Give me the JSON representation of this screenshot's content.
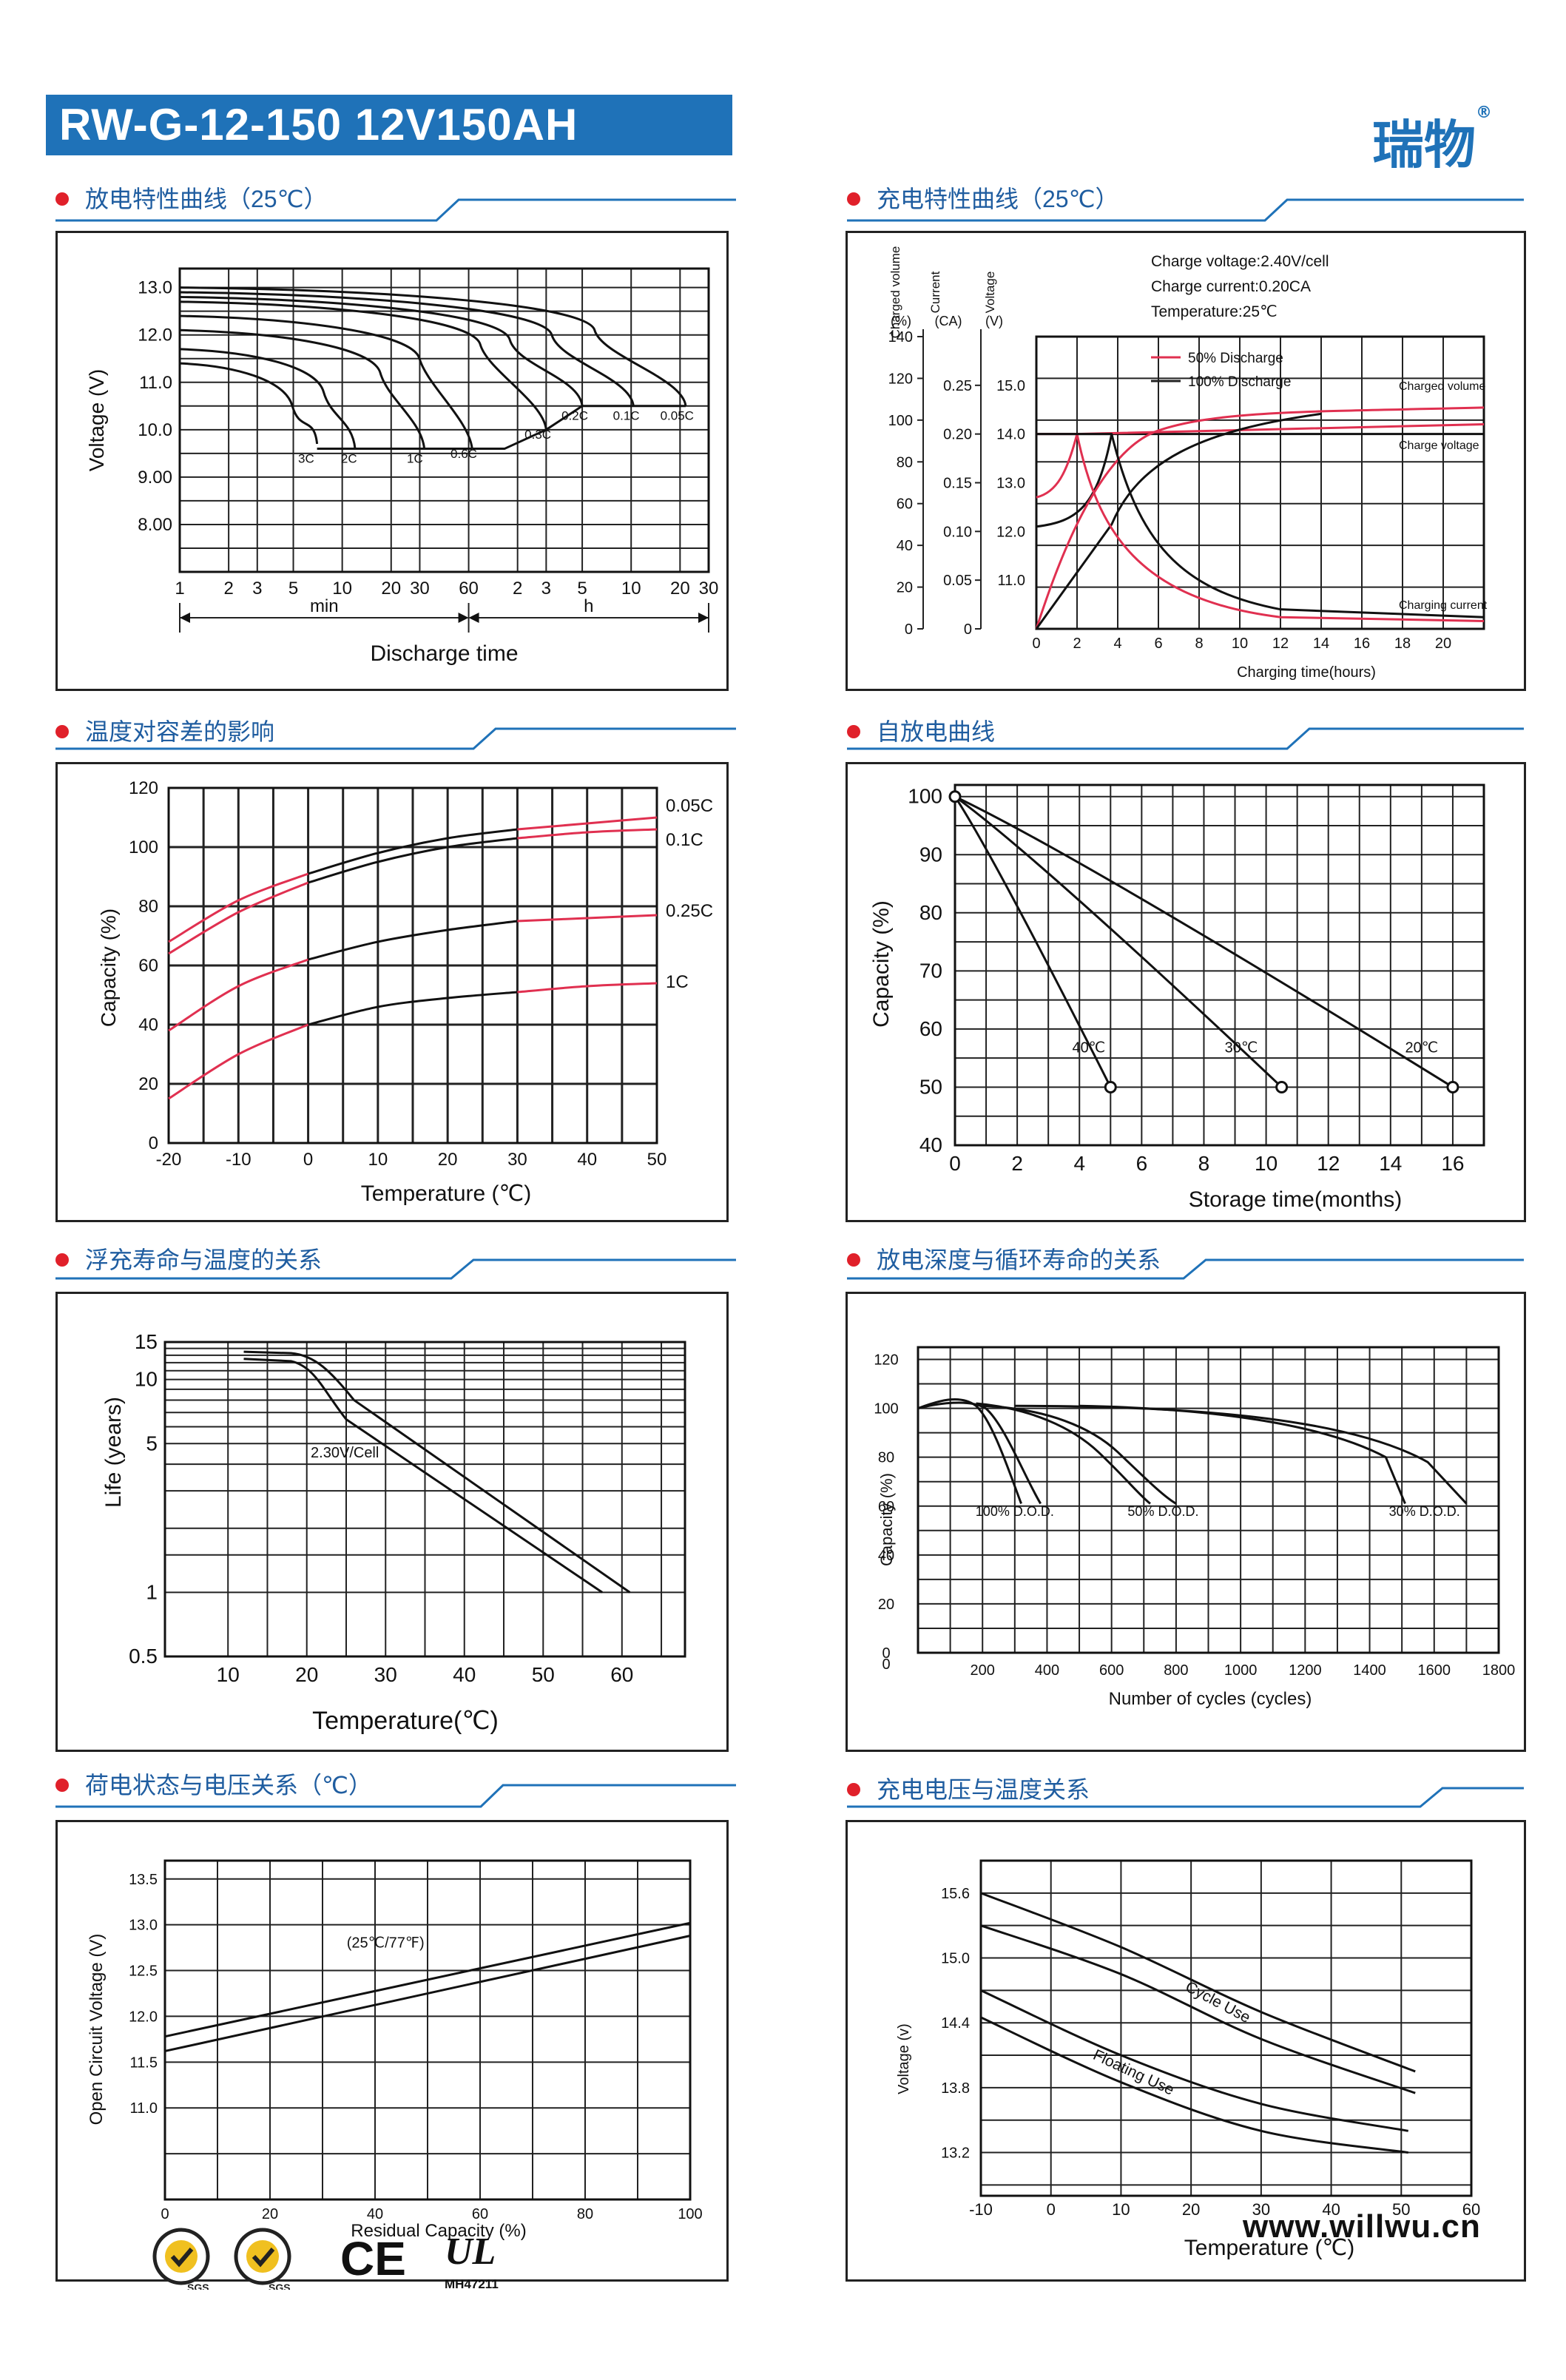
{
  "header": {
    "title": "RW-G-12-150  12V150AH",
    "brand": "瑞物",
    "brand_mark": "®"
  },
  "footer": {
    "url": "www.willwu.cn",
    "ul_code": "MH47211",
    "cert_labels": [
      "SGS",
      "SGS",
      "CE",
      "UL"
    ]
  },
  "colors": {
    "accent": "#1f72b8",
    "red": "#e0202a",
    "pink": "#e03050",
    "grid": "#222222"
  },
  "panels": {
    "p1_title": "放电特性曲线（25℃）",
    "p2_title": "充电特性曲线（25℃）",
    "p3_title": "温度对容差的影响",
    "p4_title": "自放电曲线",
    "p5_title": "浮充寿命与温度的关系",
    "p6_title": "放电深度与循环寿命的关系",
    "p7_title": "荷电状态与电压关系（℃）",
    "p8_title": "充电电压与温度关系"
  },
  "chart_data": [
    {
      "id": "discharge",
      "type": "line",
      "title": "放电特性曲线（25℃）",
      "ylabel": "Voltage (V)",
      "xlabel": "Discharge time",
      "yticks": [
        "13.0",
        "12.0",
        "11.0",
        "10.0",
        "9.00",
        "8.00"
      ],
      "ylim": [
        7.0,
        13.4
      ],
      "xticks": [
        "1",
        "2",
        "3",
        "5",
        "10",
        "20",
        "30",
        "60",
        "2",
        "3",
        "5",
        "10",
        "20",
        "30"
      ],
      "xunits": {
        "min": "min",
        "h": "h"
      },
      "series": [
        {
          "name": "3C",
          "end_minutes": 7
        },
        {
          "name": "2C",
          "end_minutes": 12
        },
        {
          "name": "1C",
          "end_minutes": 32
        },
        {
          "name": "0.6C",
          "end_minutes": 63
        },
        {
          "name": "0.3C",
          "end_minutes": 180
        },
        {
          "name": "0.2C",
          "end_minutes": 300
        },
        {
          "name": "0.1C",
          "end_minutes": 620
        },
        {
          "name": "0.05C",
          "end_minutes": 1300
        }
      ]
    },
    {
      "id": "charge",
      "type": "line",
      "title": "充电特性曲线（25℃）",
      "axis_headers": [
        "Charged volume",
        "Current",
        "Voltage"
      ],
      "axis_units": [
        "(%)",
        "(CA)",
        "(V)"
      ],
      "y1ticks": [
        "140",
        "120",
        "100",
        "80",
        "60",
        "40",
        "20",
        "0"
      ],
      "y2ticks": [
        "0.25",
        "0.20",
        "0.15",
        "0.10",
        "0.05",
        "0"
      ],
      "y3ticks": [
        "15.0",
        "14.0",
        "13.0",
        "12.0",
        "11.0"
      ],
      "xticks": [
        "0",
        "2",
        "4",
        "6",
        "8",
        "10",
        "12",
        "14",
        "16",
        "18",
        "20"
      ],
      "xlabel": "Charging time(hours)",
      "info": [
        "Charge voltage:2.40V/cell",
        "Charge current:0.20CA",
        "Temperature:25℃"
      ],
      "legend": [
        "50% Discharge",
        "100% Discharge"
      ],
      "annotations": [
        "Charged volume",
        "Charge voltage",
        "Charging current"
      ]
    },
    {
      "id": "temp_capacity",
      "type": "line",
      "title": "温度对容差的影响",
      "ylabel": "Capacity (%)",
      "xlabel": "Temperature (℃)",
      "yticks": [
        "120",
        "100",
        "80",
        "60",
        "40",
        "20",
        "0"
      ],
      "xticks": [
        "-20",
        "-10",
        "0",
        "10",
        "20",
        "30",
        "40",
        "50"
      ],
      "x": [
        -20,
        -10,
        0,
        10,
        20,
        30,
        40,
        50
      ],
      "series": [
        {
          "name": "0.05C",
          "values": [
            68,
            82,
            91,
            98,
            103,
            106,
            108,
            110
          ]
        },
        {
          "name": "0.1C",
          "values": [
            64,
            78,
            88,
            95,
            100,
            103,
            105,
            106
          ]
        },
        {
          "name": "0.25C",
          "values": [
            38,
            53,
            62,
            68,
            72,
            75,
            76,
            77
          ]
        },
        {
          "name": "1C",
          "values": [
            15,
            30,
            40,
            46,
            49,
            51,
            53,
            54
          ]
        }
      ]
    },
    {
      "id": "self_discharge",
      "type": "line",
      "title": "自放电曲线",
      "ylabel": "Capacity (%)",
      "xlabel": "Storage time(months)",
      "yticks": [
        "100",
        "90",
        "80",
        "70",
        "60",
        "50",
        "40"
      ],
      "xticks": [
        "0",
        "2",
        "4",
        "6",
        "8",
        "10",
        "12",
        "14",
        "16"
      ],
      "series": [
        {
          "name": "40℃",
          "x": [
            0,
            5
          ],
          "values": [
            100,
            50
          ]
        },
        {
          "name": "30℃",
          "x": [
            0,
            10.5
          ],
          "values": [
            100,
            50
          ]
        },
        {
          "name": "20℃",
          "x": [
            0,
            16
          ],
          "values": [
            100,
            50
          ]
        }
      ]
    },
    {
      "id": "float_life",
      "type": "line",
      "title": "浮充寿命与温度的关系",
      "ylabel": "Life (years)",
      "xlabel": "Temperature(℃)",
      "yticks": [
        "15",
        "10",
        "5",
        "1",
        "0.5"
      ],
      "xticks": [
        "10",
        "20",
        "30",
        "40",
        "50",
        "60"
      ],
      "annotation": "2.30V/Cell"
    },
    {
      "id": "cycle_life",
      "type": "line",
      "title": "放电深度与循环寿命的关系",
      "ylabel": "Capacity (%)",
      "xlabel": "Number of cycles (cycles)",
      "yticks": [
        "120",
        "100",
        "80",
        "60",
        "40",
        "20",
        "0"
      ],
      "xticks": [
        "200",
        "400",
        "600",
        "800",
        "1000",
        "1200",
        "1400",
        "1600",
        "1800"
      ],
      "series": [
        {
          "name": "100% D.O.D.",
          "end_cycles": 380
        },
        {
          "name": "50% D.O.D.",
          "end_cycles": 800
        },
        {
          "name": "30% D.O.D.",
          "end_cycles": 1700
        }
      ]
    },
    {
      "id": "soc_voltage",
      "type": "line",
      "title": "荷电状态与电压关系（℃）",
      "ylabel": "Open Circuit Voltage (V)",
      "xlabel": "Residual Capacity (%)",
      "yticks": [
        "13.5",
        "13.0",
        "12.5",
        "12.0",
        "11.5",
        "11.0"
      ],
      "xticks": [
        "0",
        "20",
        "40",
        "60",
        "80",
        "100"
      ],
      "annotation": "(25℃/77℉)",
      "series": [
        {
          "name": "upper",
          "x": [
            0,
            100
          ],
          "values": [
            11.78,
            13.02
          ]
        },
        {
          "name": "lower",
          "x": [
            0,
            100
          ],
          "values": [
            11.62,
            12.88
          ]
        }
      ]
    },
    {
      "id": "charge_voltage_temp",
      "type": "line",
      "title": "充电电压与温度关系",
      "ylabel": "Voltage (v)",
      "xlabel": "Temperature (℃)",
      "yticks": [
        "15.6",
        "15.0",
        "14.4",
        "13.8",
        "13.2"
      ],
      "xticks": [
        "-10",
        "0",
        "10",
        "20",
        "30",
        "40",
        "50",
        "60"
      ],
      "labels": [
        "Cycle Use",
        "Floating Use"
      ]
    }
  ]
}
